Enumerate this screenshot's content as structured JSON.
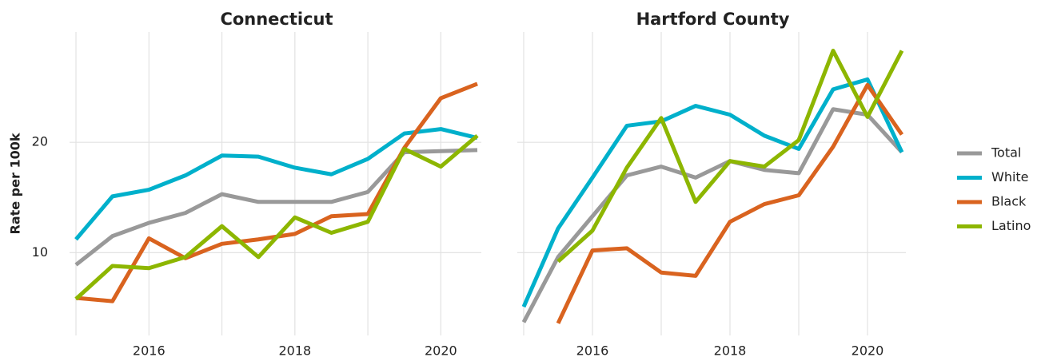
{
  "chart_data": [
    {
      "type": "line",
      "title": "Connecticut",
      "y_label": "Rate per 100k",
      "x": [
        2015,
        2015.5,
        2016,
        2016.5,
        2017,
        2017.5,
        2018,
        2018.5,
        2019,
        2019.5,
        2020,
        2020.5
      ],
      "xlim": [
        2015,
        2020.5
      ],
      "xticks": [
        2016,
        2018,
        2020
      ],
      "x_minor_ticks": [
        2015,
        2017,
        2019
      ],
      "ylim": [
        2.5,
        30
      ],
      "yticks": [
        10,
        20
      ],
      "grid": true,
      "series": [
        {
          "name": "Total",
          "color": "#999999",
          "values": [
            8.9,
            11.5,
            12.7,
            13.6,
            15.3,
            14.6,
            14.6,
            14.6,
            15.5,
            19.1,
            19.2,
            19.3
          ]
        },
        {
          "name": "White",
          "color": "#00b0cb",
          "values": [
            11.2,
            15.1,
            15.7,
            17.0,
            18.8,
            18.7,
            17.7,
            17.1,
            18.5,
            20.8,
            21.2,
            20.4
          ]
        },
        {
          "name": "Black",
          "color": "#d9631f",
          "values": [
            5.9,
            5.6,
            11.3,
            9.5,
            10.8,
            11.2,
            11.7,
            13.3,
            13.5,
            19.5,
            24.0,
            25.3
          ]
        },
        {
          "name": "Latino",
          "color": "#8db600",
          "values": [
            5.8,
            8.8,
            8.6,
            9.6,
            12.4,
            9.6,
            13.2,
            11.8,
            12.8,
            19.4,
            17.8,
            20.6
          ]
        }
      ]
    },
    {
      "type": "line",
      "title": "Hartford County",
      "x": [
        2015,
        2015.5,
        2016,
        2016.5,
        2017,
        2017.5,
        2018,
        2018.5,
        2019,
        2019.5,
        2020,
        2020.5
      ],
      "xlim": [
        2015,
        2020.5
      ],
      "xticks": [
        2016,
        2018,
        2020
      ],
      "x_minor_ticks": [
        2015,
        2017,
        2019
      ],
      "ylim": [
        2.5,
        30
      ],
      "yticks": [
        10,
        20
      ],
      "grid": true,
      "series": [
        {
          "name": "Total",
          "color": "#999999",
          "values": [
            3.7,
            9.6,
            13.3,
            17.0,
            17.8,
            16.8,
            18.3,
            17.5,
            17.2,
            23.0,
            22.5,
            19.1
          ]
        },
        {
          "name": "White",
          "color": "#00b0cb",
          "values": [
            5.1,
            12.2,
            16.8,
            21.5,
            21.9,
            23.3,
            22.5,
            20.6,
            19.4,
            24.8,
            25.7,
            19.1
          ]
        },
        {
          "name": "Black",
          "color": "#d9631f",
          "values": [
            null,
            3.6,
            10.2,
            10.4,
            8.2,
            7.9,
            12.8,
            14.4,
            15.2,
            19.6,
            25.2,
            20.7
          ]
        },
        {
          "name": "Latino",
          "color": "#8db600",
          "values": [
            null,
            9.2,
            12.0,
            17.7,
            22.2,
            14.6,
            18.3,
            17.8,
            20.2,
            28.3,
            22.3,
            28.3
          ]
        }
      ]
    }
  ]
}
